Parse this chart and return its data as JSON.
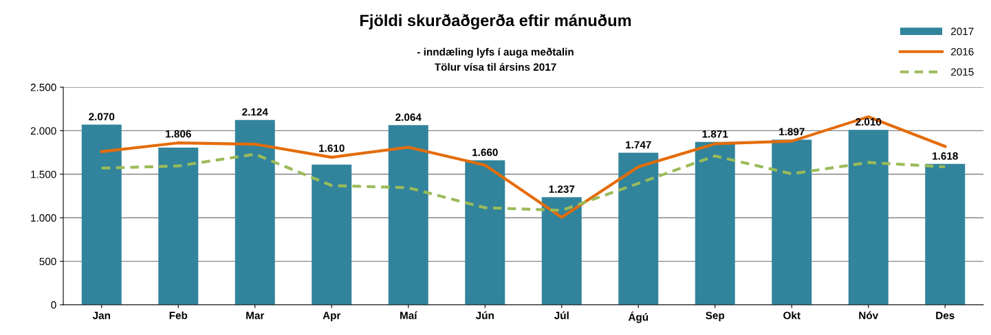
{
  "chart_data": {
    "type": "bar",
    "title": "Fjöldi skurðaðgerða eftir mánuðum",
    "subtitle": "- inndæling lyfs í auga meðtalin\nTölur vísa til ársins 2017",
    "categories": [
      "Jan",
      "Feb",
      "Mar",
      "Apr",
      "Maí",
      "Jún",
      "Júl",
      "Ágú",
      "Sep",
      "Okt",
      "Nóv",
      "Des"
    ],
    "series": [
      {
        "name": "2017",
        "color": "#31849b",
        "values": [
          2070,
          1806,
          2124,
          1610,
          2064,
          1660,
          1237,
          1747,
          1871,
          1897,
          2010,
          1618
        ],
        "value_labels": [
          "2.070",
          "1.806",
          "2.124",
          "1.610",
          "2.064",
          "1.660",
          "1.237",
          "1.747",
          "1.871",
          "1.897",
          "2.010",
          "1.618"
        ]
      },
      {
        "name": "2016",
        "type": "line",
        "color": "#e46c0a",
        "line_style": "solid",
        "values": [
          1760,
          1860,
          1845,
          1695,
          1810,
          1605,
          1005,
          1585,
          1850,
          1880,
          2160,
          1820
        ]
      },
      {
        "name": "2015",
        "type": "line",
        "color": "#9bbb59",
        "line_style": "dashed",
        "values": [
          1570,
          1595,
          1730,
          1370,
          1345,
          1115,
          1085,
          1395,
          1710,
          1505,
          1635,
          1585
        ]
      }
    ],
    "ylim": [
      0,
      2500
    ],
    "yticks": [
      {
        "value": 0,
        "label": "0"
      },
      {
        "value": 500,
        "label": "500"
      },
      {
        "value": 1000,
        "label": "1.000"
      },
      {
        "value": 1500,
        "label": "1.500"
      },
      {
        "value": 2000,
        "label": "2.000"
      },
      {
        "value": 2500,
        "label": "2.500"
      }
    ],
    "grid": "y",
    "legend": "top right"
  }
}
